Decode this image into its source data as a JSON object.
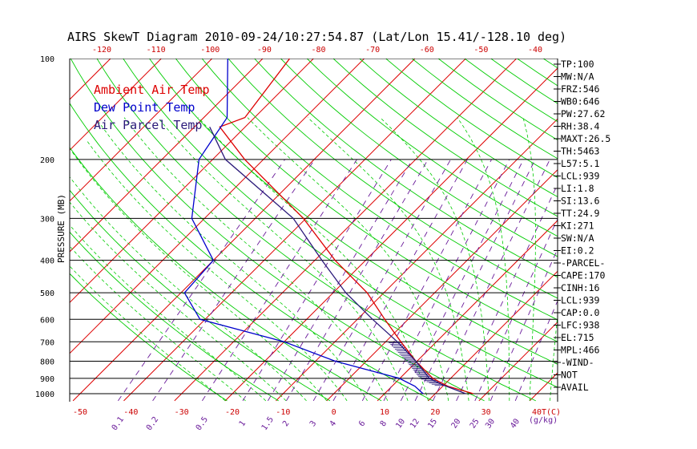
{
  "chart_data": {
    "type": "line",
    "title": "AIRS SkewT Diagram 2010-09-24/10:27:54.87 (Lat/Lon 15.41/-128.10 deg)",
    "ylabel": "PRESSURE (MB)",
    "xlabel_unit": "T(C)",
    "mixing_unit": "(g/kg)",
    "pressure_ticks": [
      100,
      200,
      300,
      400,
      500,
      600,
      700,
      800,
      900,
      1000
    ],
    "top_temp_ticks": [
      -120,
      -110,
      -100,
      -90,
      -80,
      -70,
      -60,
      -50,
      -40
    ],
    "bottom_temp_ticks": [
      -50,
      -40,
      -30,
      -20,
      -10,
      0,
      10,
      20,
      30,
      40
    ],
    "mixing_ratio_ticks": [
      "0.1",
      "0.2",
      "0.5",
      "1",
      "1.5",
      "2",
      "3",
      "4",
      "6",
      "8",
      "10",
      "12",
      "15",
      "20",
      "25",
      "30",
      "40"
    ],
    "legend": [
      {
        "label": "Ambient Air Temp",
        "color": "#dd0000"
      },
      {
        "label": "Dew Point Temp",
        "color": "#0000cc"
      },
      {
        "label": "Air Parcel Temp",
        "color": "#2b1a7a"
      }
    ],
    "background_lines": {
      "isobars": "#000000",
      "isotherms": "#dd0000",
      "dry_adiabats": "#00cc00",
      "moist_adiabats": "#00cc00",
      "mixing_ratio": "#6a1b9a"
    },
    "series": [
      {
        "name": "Ambient Air Temp",
        "color": "#dd0000",
        "points": [
          [
            100,
            -74.7
          ],
          [
            150,
            -71.9
          ],
          [
            160,
            -75.0
          ],
          [
            200,
            -63.7
          ],
          [
            300,
            -40.5
          ],
          [
            400,
            -26.0
          ],
          [
            500,
            -13.3
          ],
          [
            600,
            -4.6
          ],
          [
            700,
            3.0
          ],
          [
            800,
            9.8
          ],
          [
            900,
            16.5
          ],
          [
            950,
            21.0
          ],
          [
            1000,
            27.5
          ]
        ]
      },
      {
        "name": "Dew Point Temp",
        "color": "#0000cc",
        "points": [
          [
            100,
            -86.9
          ],
          [
            150,
            -75.4
          ],
          [
            200,
            -72.7
          ],
          [
            300,
            -62.5
          ],
          [
            400,
            -50.0
          ],
          [
            500,
            -49.3
          ],
          [
            600,
            -41.0
          ],
          [
            700,
            -20.0
          ],
          [
            800,
            -6.1
          ],
          [
            900,
            9.9
          ],
          [
            950,
            14.5
          ],
          [
            1000,
            17.6
          ]
        ]
      },
      {
        "name": "Air Parcel Temp",
        "color": "#2b1a7a",
        "points": [
          [
            160,
            -77.0
          ],
          [
            200,
            -67.5
          ],
          [
            300,
            -42.5
          ],
          [
            400,
            -28.6
          ],
          [
            500,
            -17.5
          ],
          [
            600,
            -7.0
          ],
          [
            700,
            2.3
          ],
          [
            800,
            9.8
          ],
          [
            900,
            15.8
          ],
          [
            939,
            19.5
          ],
          [
            1000,
            26.0
          ]
        ]
      }
    ],
    "indices": [
      "TP:100",
      "MW:N/A",
      "FRZ:546",
      "WB0:646",
      "PW:27.62",
      "RH:38.4",
      "MAXT:26.5",
      "TH:5463",
      "L57:5.1",
      "LCL:939",
      "LI:1.8",
      "SI:13.6",
      "TT:24.9",
      "KI:271",
      "SW:N/A",
      "EI:0.2",
      "-PARCEL-",
      "CAPE:170",
      "CINH:16",
      "LCL:939",
      "CAP:0.0",
      "LFC:938",
      "EL:715",
      "MPL:466",
      "-WIND-",
      "NOT",
      "AVAIL"
    ]
  }
}
